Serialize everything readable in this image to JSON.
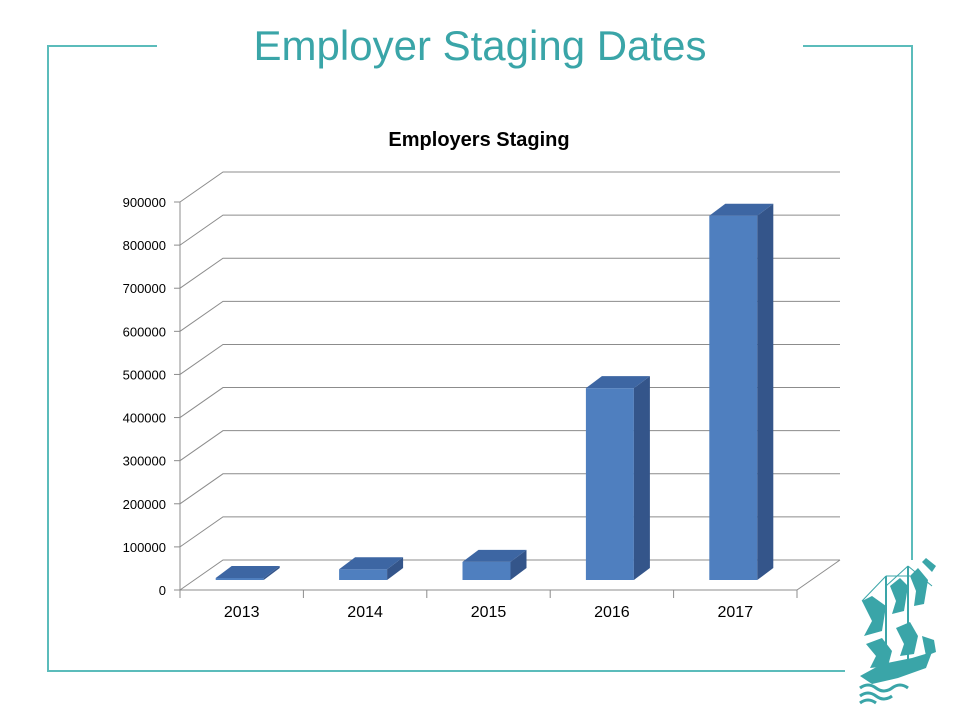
{
  "slide": {
    "title": "Employer Staging Dates"
  },
  "colors": {
    "frame": "#5bbcbb",
    "title": "#3aa5a8",
    "bar_front": "#4f7fbf",
    "bar_side": "#34558a",
    "bar_top": "#3d66a3",
    "grid": "#8c8c8c"
  },
  "chart_data": {
    "type": "bar",
    "title": "Employers Staging",
    "categories": [
      "2013",
      "2014",
      "2015",
      "2016",
      "2017"
    ],
    "values": [
      3000,
      25000,
      42000,
      445000,
      845000
    ],
    "ylim": [
      0,
      900000
    ],
    "yticks": [
      "0",
      "100000",
      "200000",
      "300000",
      "400000",
      "500000",
      "600000",
      "700000",
      "800000",
      "900000"
    ],
    "xlabel": "",
    "ylabel": "",
    "grid": true,
    "legend": "none",
    "style": "3d-column"
  },
  "logo": {
    "icon": "ship-logo-icon"
  }
}
